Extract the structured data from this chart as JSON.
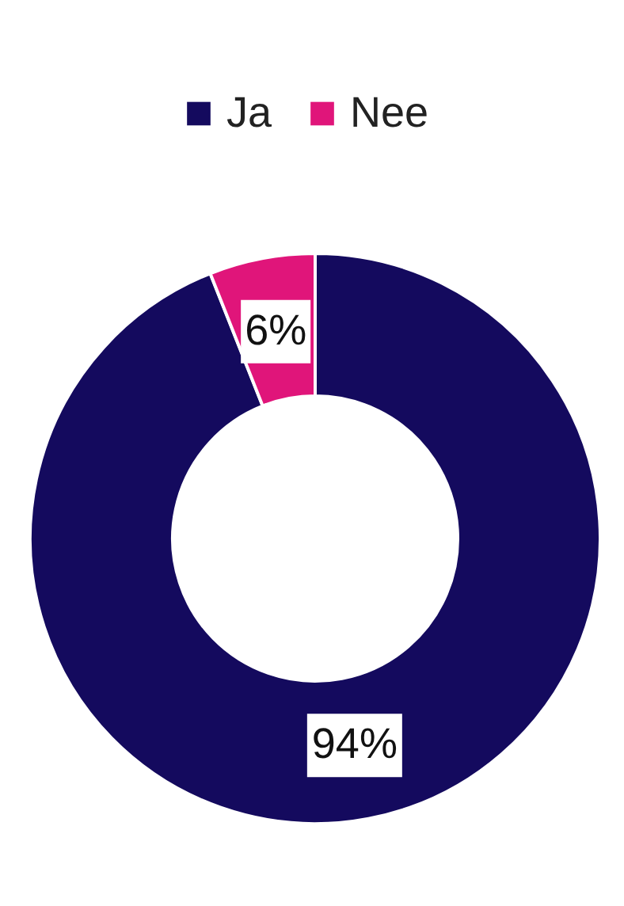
{
  "chart_data": {
    "type": "donut",
    "categories": [
      "Ja",
      "Nee"
    ],
    "values": [
      94,
      6
    ],
    "colors": [
      "#140a5e",
      "#e0157a"
    ],
    "legend": "top",
    "value_labels": [
      "94%",
      "6%"
    ]
  }
}
